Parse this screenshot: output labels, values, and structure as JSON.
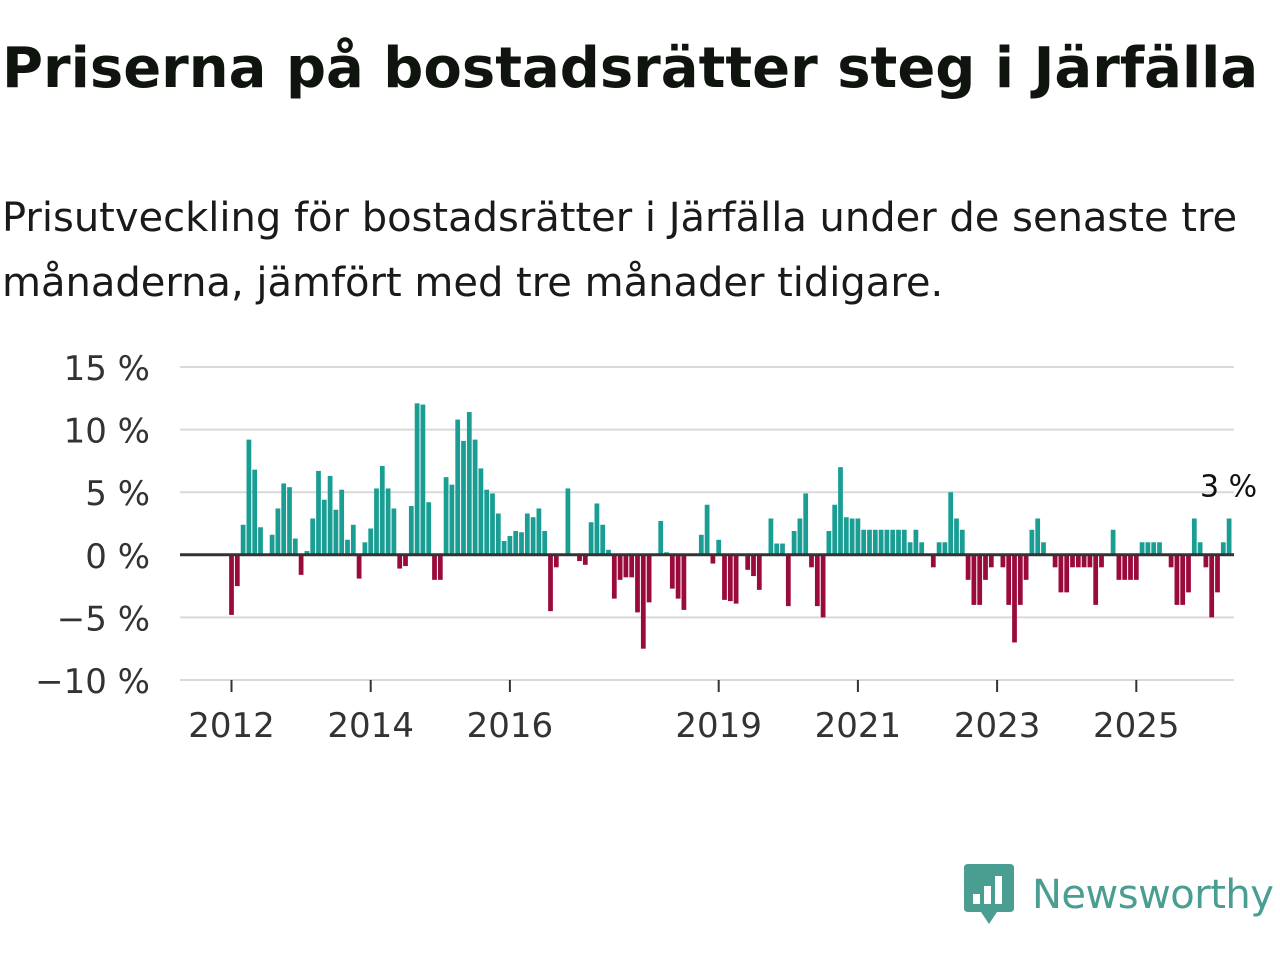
{
  "title": "Priserna på bostadsrätter steg i Järfälla",
  "subtitle": "Prisutveckling för bostadsrätter i Järfälla under de senaste tre månaderna, jämfört med tre månader tidigare.",
  "colors": {
    "positive": "#1a9e93",
    "negative": "#9b0a3c",
    "zero_line": "#333333",
    "grid": "#d9d9d9",
    "brand": "#4a9d91"
  },
  "brand": {
    "name": "Newsworthy",
    "icon": "bar-chart-speech-icon"
  },
  "chart_data": {
    "type": "bar",
    "title": "Priserna på bostadsrätter steg i Järfälla",
    "xlabel": "",
    "ylabel": "",
    "ylim": [
      -10,
      15
    ],
    "yticks": [
      -10,
      -5,
      0,
      5,
      10,
      15
    ],
    "ytick_labels": [
      "−10 %",
      "−5 %",
      "0 %",
      "5 %",
      "10 %",
      "15 %"
    ],
    "xticks": [
      2012,
      2014,
      2016,
      2019,
      2021,
      2023,
      2025
    ],
    "grid": true,
    "start": "2012-01",
    "frequency": "monthly",
    "unit": "%",
    "annotation": {
      "label": "3 %",
      "target": "last"
    },
    "values": [
      -4.8,
      -2.5,
      2.4,
      9.2,
      6.8,
      2.2,
      0,
      1.6,
      3.7,
      5.7,
      5.4,
      1.3,
      -1.6,
      0.3,
      2.9,
      6.7,
      4.4,
      6.3,
      3.6,
      5.2,
      1.2,
      2.4,
      -1.9,
      1.0,
      2.1,
      5.3,
      7.1,
      5.3,
      3.7,
      -1.1,
      -0.9,
      3.9,
      12.1,
      12.0,
      4.2,
      -2.0,
      -2.0,
      6.2,
      5.6,
      10.8,
      9.1,
      11.4,
      9.2,
      6.9,
      5.2,
      4.9,
      3.3,
      1.1,
      1.5,
      1.9,
      1.8,
      3.3,
      3.0,
      3.7,
      1.9,
      -4.5,
      -1.0,
      0,
      5.3,
      0,
      -0.5,
      -0.8,
      2.6,
      4.1,
      2.4,
      0.4,
      -3.5,
      -2.0,
      -1.8,
      -1.8,
      -4.6,
      -7.5,
      -3.8,
      0,
      2.7,
      0.2,
      -2.7,
      -3.5,
      -4.4,
      0,
      0,
      1.6,
      4.0,
      -0.7,
      1.2,
      -3.6,
      -3.7,
      -3.9,
      0,
      -1.2,
      -1.7,
      -2.8,
      0,
      2.9,
      0.9,
      0.9,
      -4.1,
      1.9,
      2.9,
      4.9,
      -1.0,
      -4.1,
      -5.0,
      1.9,
      4.0,
      7.0,
      3.0,
      2.9,
      2.9,
      2.0,
      2.0,
      2.0,
      2.0,
      2.0,
      2.0,
      2.0,
      2.0,
      1.0,
      2.0,
      1.0,
      0,
      -1.0,
      1.0,
      1.0,
      5.0,
      2.9,
      2.0,
      -2.0,
      -4.0,
      -4.0,
      -2.0,
      -1.0,
      0,
      -1.0,
      -4.0,
      -7.0,
      -4.0,
      -2.0,
      2.0,
      2.9,
      1.0,
      0,
      -1.0,
      -3.0,
      -3.0,
      -1.0,
      -1.0,
      -1.0,
      -1.0,
      -4.0,
      -1.0,
      0,
      2.0,
      -2.0,
      -2.0,
      -2.0,
      -2.0,
      1.0,
      1.0,
      1.0,
      1.0,
      0,
      -1.0,
      -4.0,
      -4.0,
      -3.0,
      2.9,
      1.0,
      -1.0,
      -5.0,
      -3.0,
      1.0,
      2.9
    ]
  }
}
